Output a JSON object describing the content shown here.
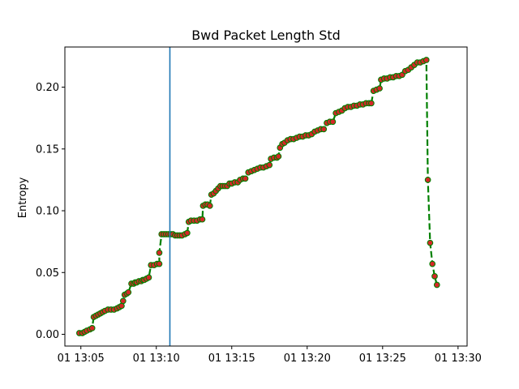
{
  "chart_data": {
    "type": "line",
    "title": "Bwd Packet Length Std",
    "xlabel": "",
    "ylabel": "Entropy",
    "x_unit": "minutes",
    "x_tick_labels": [
      "01 13:05",
      "01 13:10",
      "01 13:15",
      "01 13:20",
      "01 13:25",
      "01 13:30"
    ],
    "x_ticks": [
      5,
      10,
      15,
      20,
      25,
      30
    ],
    "xlim": [
      3.94,
      30.6
    ],
    "y_ticks": [
      0.0,
      0.05,
      0.1,
      0.15,
      0.2
    ],
    "y_tick_labels": [
      "0.00",
      "0.05",
      "0.10",
      "0.15",
      "0.20"
    ],
    "ylim": [
      -0.0095,
      0.2325
    ],
    "vertical_line_x": 10.9,
    "colors": {
      "line": "#008000",
      "marker": "#d62728",
      "marker_edge": "#008000",
      "vline": "#1f77b4"
    },
    "series": [
      {
        "points": [
          [
            4.9,
            0.001
          ],
          [
            5.1,
            0.001
          ],
          [
            5.25,
            0.002
          ],
          [
            5.4,
            0.003
          ],
          [
            5.6,
            0.004
          ],
          [
            5.75,
            0.005
          ],
          [
            5.85,
            0.014
          ],
          [
            6.0,
            0.015
          ],
          [
            6.15,
            0.016
          ],
          [
            6.3,
            0.017
          ],
          [
            6.45,
            0.018
          ],
          [
            6.6,
            0.019
          ],
          [
            6.8,
            0.02
          ],
          [
            7.0,
            0.02
          ],
          [
            7.2,
            0.02
          ],
          [
            7.4,
            0.021
          ],
          [
            7.55,
            0.022
          ],
          [
            7.7,
            0.023
          ],
          [
            7.8,
            0.027
          ],
          [
            7.9,
            0.032
          ],
          [
            8.05,
            0.033
          ],
          [
            8.15,
            0.034
          ],
          [
            8.35,
            0.041
          ],
          [
            8.5,
            0.041
          ],
          [
            8.6,
            0.042
          ],
          [
            8.7,
            0.042
          ],
          [
            8.85,
            0.043
          ],
          [
            9.0,
            0.043
          ],
          [
            9.1,
            0.044
          ],
          [
            9.2,
            0.044
          ],
          [
            9.35,
            0.045
          ],
          [
            9.5,
            0.046
          ],
          [
            9.65,
            0.056
          ],
          [
            9.85,
            0.056
          ],
          [
            10.05,
            0.057
          ],
          [
            10.2,
            0.057
          ],
          [
            10.2,
            0.066
          ],
          [
            10.35,
            0.081
          ],
          [
            10.5,
            0.081
          ],
          [
            10.65,
            0.081
          ],
          [
            10.8,
            0.081
          ],
          [
            10.95,
            0.081
          ],
          [
            11.1,
            0.081
          ],
          [
            11.25,
            0.08
          ],
          [
            11.4,
            0.08
          ],
          [
            11.55,
            0.08
          ],
          [
            11.7,
            0.08
          ],
          [
            11.9,
            0.081
          ],
          [
            12.05,
            0.082
          ],
          [
            12.15,
            0.091
          ],
          [
            12.3,
            0.092
          ],
          [
            12.5,
            0.092
          ],
          [
            12.7,
            0.092
          ],
          [
            12.9,
            0.093
          ],
          [
            13.05,
            0.093
          ],
          [
            13.1,
            0.104
          ],
          [
            13.25,
            0.105
          ],
          [
            13.4,
            0.105
          ],
          [
            13.55,
            0.104
          ],
          [
            13.65,
            0.113
          ],
          [
            13.8,
            0.114
          ],
          [
            13.95,
            0.116
          ],
          [
            14.1,
            0.118
          ],
          [
            14.25,
            0.12
          ],
          [
            14.4,
            0.12
          ],
          [
            14.55,
            0.12
          ],
          [
            14.7,
            0.12
          ],
          [
            14.85,
            0.122
          ],
          [
            15.0,
            0.122
          ],
          [
            15.2,
            0.123
          ],
          [
            15.4,
            0.123
          ],
          [
            15.55,
            0.125
          ],
          [
            15.75,
            0.126
          ],
          [
            15.9,
            0.126
          ],
          [
            16.1,
            0.131
          ],
          [
            16.3,
            0.132
          ],
          [
            16.5,
            0.133
          ],
          [
            16.7,
            0.134
          ],
          [
            16.9,
            0.135
          ],
          [
            17.1,
            0.135
          ],
          [
            17.3,
            0.136
          ],
          [
            17.5,
            0.137
          ],
          [
            17.6,
            0.142
          ],
          [
            17.8,
            0.143
          ],
          [
            18.0,
            0.143
          ],
          [
            18.1,
            0.144
          ],
          [
            18.2,
            0.151
          ],
          [
            18.35,
            0.154
          ],
          [
            18.5,
            0.155
          ],
          [
            18.7,
            0.157
          ],
          [
            18.9,
            0.158
          ],
          [
            19.1,
            0.158
          ],
          [
            19.3,
            0.159
          ],
          [
            19.5,
            0.16
          ],
          [
            19.7,
            0.16
          ],
          [
            19.9,
            0.161
          ],
          [
            20.1,
            0.161
          ],
          [
            20.3,
            0.162
          ],
          [
            20.5,
            0.164
          ],
          [
            20.7,
            0.165
          ],
          [
            20.9,
            0.166
          ],
          [
            21.1,
            0.166
          ],
          [
            21.3,
            0.171
          ],
          [
            21.5,
            0.172
          ],
          [
            21.7,
            0.172
          ],
          [
            21.9,
            0.179
          ],
          [
            22.1,
            0.18
          ],
          [
            22.3,
            0.181
          ],
          [
            22.5,
            0.183
          ],
          [
            22.7,
            0.184
          ],
          [
            22.9,
            0.184
          ],
          [
            23.1,
            0.185
          ],
          [
            23.3,
            0.185
          ],
          [
            23.5,
            0.186
          ],
          [
            23.7,
            0.186
          ],
          [
            23.9,
            0.187
          ],
          [
            24.1,
            0.187
          ],
          [
            24.25,
            0.187
          ],
          [
            24.4,
            0.197
          ],
          [
            24.6,
            0.198
          ],
          [
            24.8,
            0.199
          ],
          [
            24.9,
            0.206
          ],
          [
            25.1,
            0.207
          ],
          [
            25.3,
            0.207
          ],
          [
            25.5,
            0.208
          ],
          [
            25.7,
            0.208
          ],
          [
            25.9,
            0.209
          ],
          [
            26.1,
            0.209
          ],
          [
            26.3,
            0.21
          ],
          [
            26.5,
            0.213
          ],
          [
            26.7,
            0.214
          ],
          [
            26.9,
            0.216
          ],
          [
            27.1,
            0.218
          ],
          [
            27.3,
            0.22
          ],
          [
            27.5,
            0.22
          ],
          [
            27.7,
            0.221
          ],
          [
            27.9,
            0.222
          ],
          [
            28.0,
            0.125
          ],
          [
            28.15,
            0.074
          ],
          [
            28.3,
            0.057
          ],
          [
            28.45,
            0.047
          ],
          [
            28.6,
            0.04
          ]
        ]
      }
    ]
  }
}
